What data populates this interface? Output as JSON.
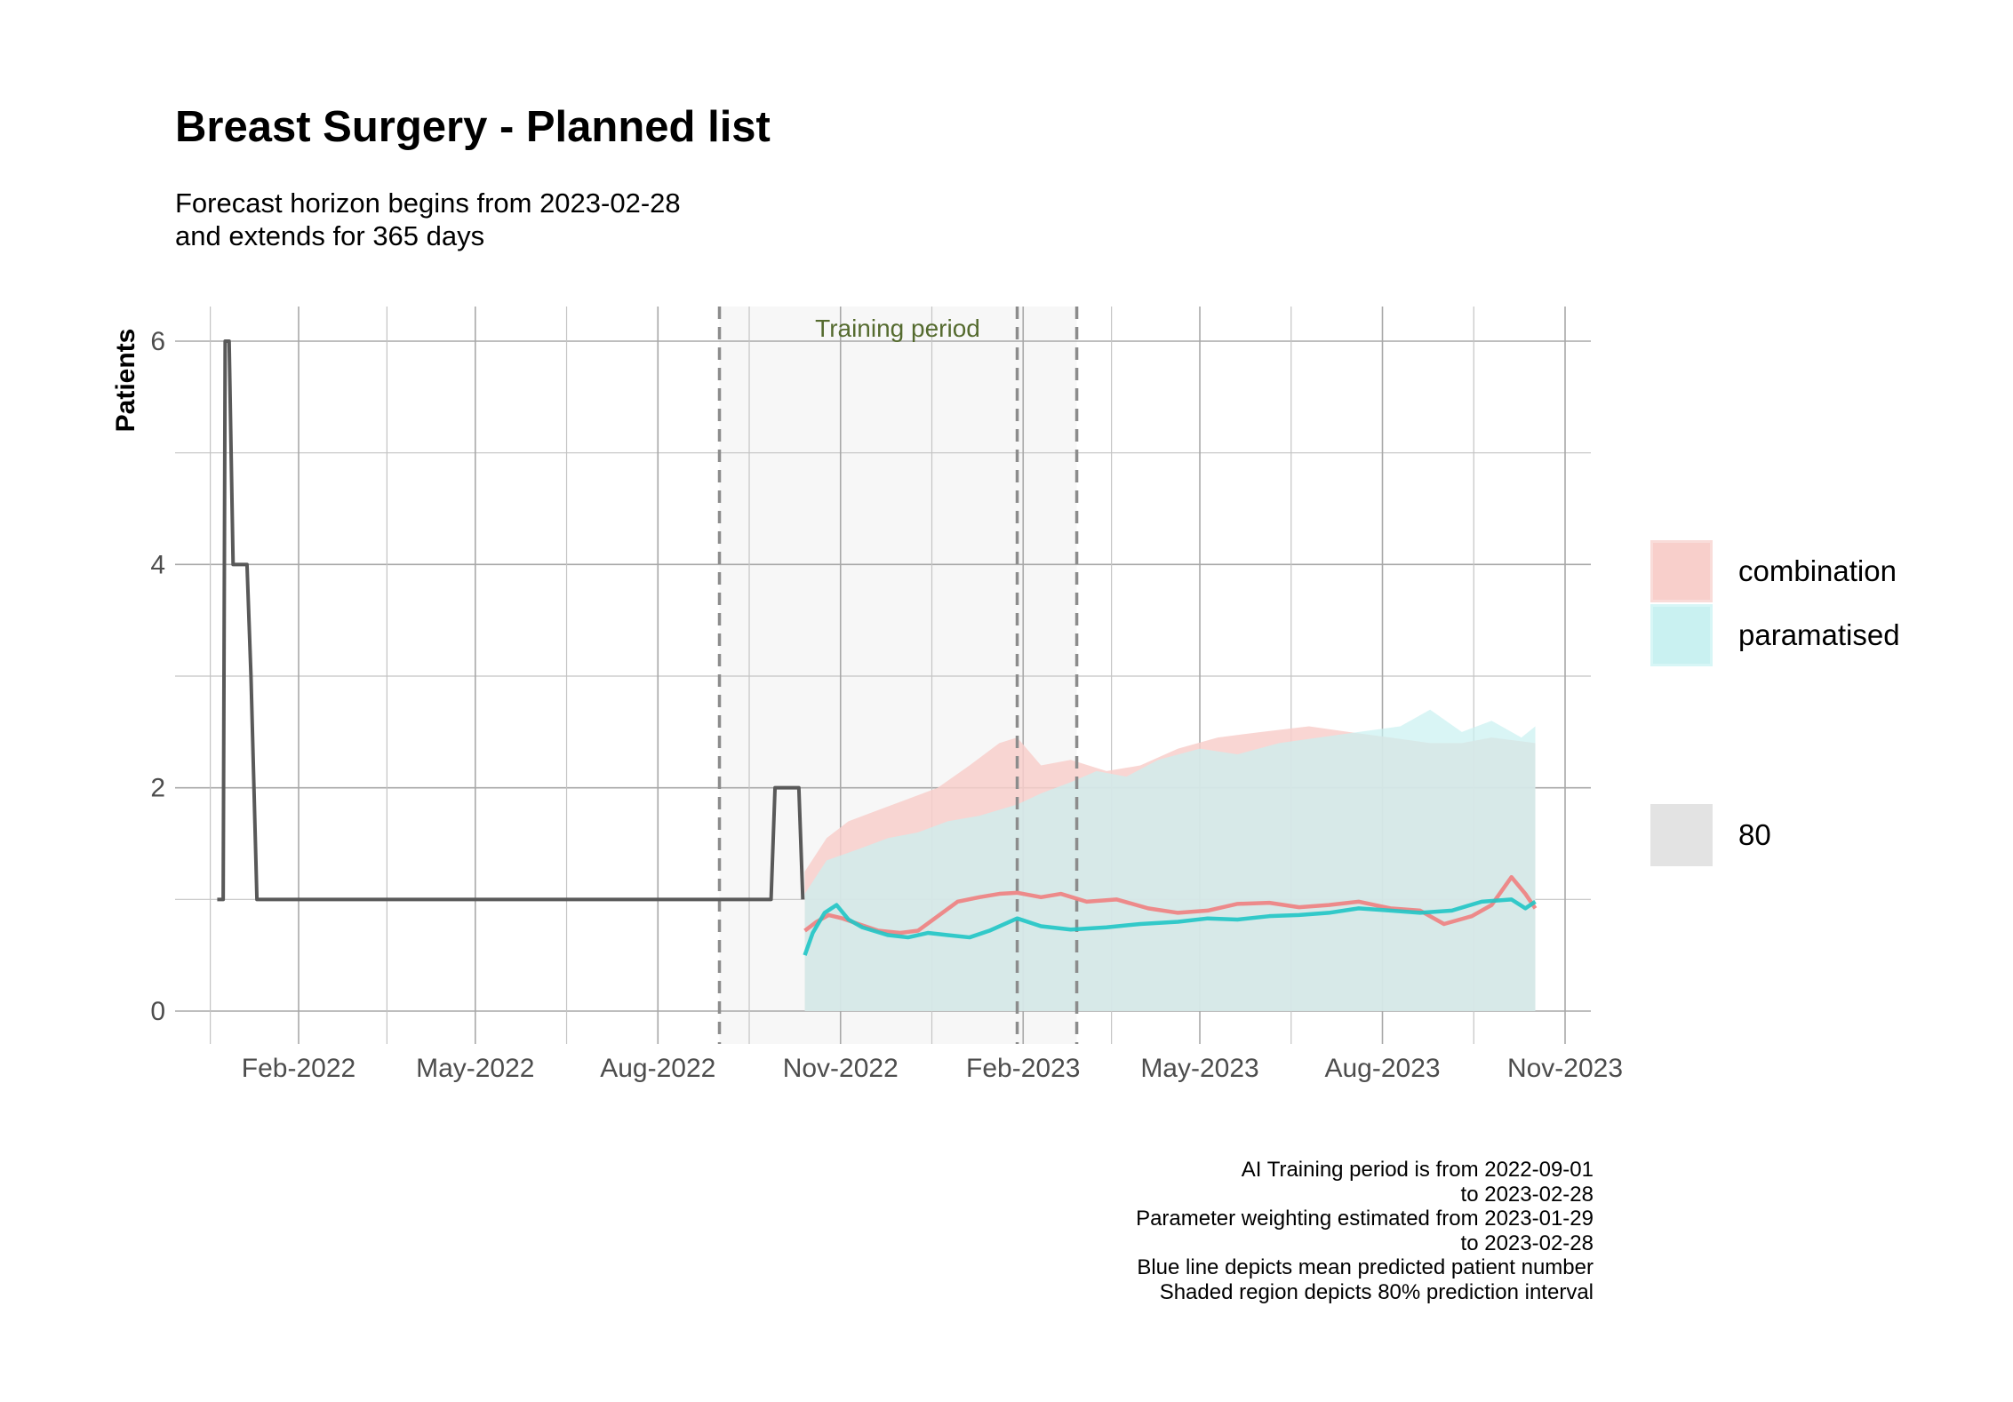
{
  "chart_data": {
    "type": "line",
    "title": "Breast Surgery - Planned list",
    "subtitle": [
      "Forecast horizon begins from 2023-02-28",
      "and extends for 365 days"
    ],
    "ylabel": "Patients",
    "xlabel": "",
    "ylim": [
      0,
      6.2
    ],
    "xlim": [
      "2021-12-08",
      "2023-11-15"
    ],
    "x_ticks": [
      {
        "date": "2022-02-01",
        "label": "Feb-2022"
      },
      {
        "date": "2022-05-01",
        "label": "May-2022"
      },
      {
        "date": "2022-08-01",
        "label": "Aug-2022"
      },
      {
        "date": "2022-11-01",
        "label": "Nov-2022"
      },
      {
        "date": "2023-02-01",
        "label": "Feb-2023"
      },
      {
        "date": "2023-05-01",
        "label": "May-2023"
      },
      {
        "date": "2023-08-01",
        "label": "Aug-2023"
      },
      {
        "date": "2023-11-01",
        "label": "Nov-2023"
      }
    ],
    "y_ticks": [
      0,
      2,
      4,
      6
    ],
    "grid": true,
    "legend_position": "right",
    "annotation": "Training period",
    "shaded_period": [
      "2022-09-01",
      "2023-02-28"
    ],
    "reference_lines": [
      "2022-09-01",
      "2023-01-29",
      "2023-02-28"
    ],
    "observed": {
      "color": "#595959",
      "points": [
        [
          "2021-12-22",
          1
        ],
        [
          "2021-12-25",
          1
        ],
        [
          "2021-12-26",
          6
        ],
        [
          "2021-12-28",
          6
        ],
        [
          "2021-12-30",
          4
        ],
        [
          "2022-01-06",
          4
        ],
        [
          "2022-01-08",
          3
        ],
        [
          "2022-01-11",
          1
        ],
        [
          "2022-08-31",
          1
        ],
        [
          "2022-09-27",
          1
        ],
        [
          "2022-09-29",
          2
        ],
        [
          "2022-10-11",
          2
        ],
        [
          "2022-10-13",
          1
        ]
      ]
    },
    "series": [
      {
        "name": "combination",
        "color": "#f08080",
        "band_color": "#f8cfcb",
        "mean": [
          [
            "2022-10-14",
            0.72
          ],
          [
            "2022-10-20",
            0.8
          ],
          [
            "2022-10-26",
            0.86
          ],
          [
            "2022-11-02",
            0.83
          ],
          [
            "2022-11-10",
            0.78
          ],
          [
            "2022-11-20",
            0.72
          ],
          [
            "2022-12-01",
            0.7
          ],
          [
            "2022-12-10",
            0.72
          ],
          [
            "2022-12-20",
            0.85
          ],
          [
            "2022-12-30",
            0.98
          ],
          [
            "2023-01-10",
            1.02
          ],
          [
            "2023-01-20",
            1.05
          ],
          [
            "2023-01-29",
            1.06
          ],
          [
            "2023-02-10",
            1.02
          ],
          [
            "2023-02-20",
            1.05
          ],
          [
            "2023-03-05",
            0.98
          ],
          [
            "2023-03-20",
            1.0
          ],
          [
            "2023-04-05",
            0.92
          ],
          [
            "2023-04-20",
            0.88
          ],
          [
            "2023-05-05",
            0.9
          ],
          [
            "2023-05-20",
            0.96
          ],
          [
            "2023-06-05",
            0.97
          ],
          [
            "2023-06-20",
            0.93
          ],
          [
            "2023-07-05",
            0.95
          ],
          [
            "2023-07-20",
            0.98
          ],
          [
            "2023-08-05",
            0.92
          ],
          [
            "2023-08-20",
            0.9
          ],
          [
            "2023-09-01",
            0.78
          ],
          [
            "2023-09-15",
            0.85
          ],
          [
            "2023-09-25",
            0.95
          ],
          [
            "2023-10-05",
            1.2
          ],
          [
            "2023-10-12",
            1.05
          ],
          [
            "2023-10-17",
            0.92
          ]
        ],
        "upper": [
          [
            "2022-10-14",
            1.25
          ],
          [
            "2022-10-25",
            1.55
          ],
          [
            "2022-11-05",
            1.7
          ],
          [
            "2022-11-20",
            1.8
          ],
          [
            "2022-12-05",
            1.9
          ],
          [
            "2022-12-20",
            2.0
          ],
          [
            "2023-01-05",
            2.2
          ],
          [
            "2023-01-20",
            2.4
          ],
          [
            "2023-01-29",
            2.45
          ],
          [
            "2023-02-10",
            2.2
          ],
          [
            "2023-02-25",
            2.25
          ],
          [
            "2023-03-15",
            2.15
          ],
          [
            "2023-04-01",
            2.2
          ],
          [
            "2023-04-20",
            2.35
          ],
          [
            "2023-05-10",
            2.45
          ],
          [
            "2023-06-01",
            2.5
          ],
          [
            "2023-06-25",
            2.55
          ],
          [
            "2023-07-15",
            2.5
          ],
          [
            "2023-08-05",
            2.45
          ],
          [
            "2023-08-25",
            2.4
          ],
          [
            "2023-09-10",
            2.4
          ],
          [
            "2023-09-25",
            2.45
          ],
          [
            "2023-10-17",
            2.4
          ]
        ],
        "lower": [
          [
            "2022-10-14",
            0.0
          ],
          [
            "2023-10-17",
            0.0
          ]
        ]
      },
      {
        "name": "paramatised",
        "color": "#20c5c5",
        "band_color": "#c9f1f1",
        "mean": [
          [
            "2022-10-14",
            0.5
          ],
          [
            "2022-10-18",
            0.7
          ],
          [
            "2022-10-24",
            0.88
          ],
          [
            "2022-10-30",
            0.95
          ],
          [
            "2022-11-05",
            0.82
          ],
          [
            "2022-11-12",
            0.75
          ],
          [
            "2022-11-25",
            0.68
          ],
          [
            "2022-12-05",
            0.66
          ],
          [
            "2022-12-15",
            0.7
          ],
          [
            "2022-12-25",
            0.68
          ],
          [
            "2023-01-05",
            0.66
          ],
          [
            "2023-01-15",
            0.72
          ],
          [
            "2023-01-29",
            0.83
          ],
          [
            "2023-02-10",
            0.76
          ],
          [
            "2023-02-25",
            0.73
          ],
          [
            "2023-03-15",
            0.75
          ],
          [
            "2023-04-01",
            0.78
          ],
          [
            "2023-04-20",
            0.8
          ],
          [
            "2023-05-05",
            0.83
          ],
          [
            "2023-05-20",
            0.82
          ],
          [
            "2023-06-05",
            0.85
          ],
          [
            "2023-06-20",
            0.86
          ],
          [
            "2023-07-05",
            0.88
          ],
          [
            "2023-07-20",
            0.92
          ],
          [
            "2023-08-05",
            0.9
          ],
          [
            "2023-08-20",
            0.88
          ],
          [
            "2023-09-05",
            0.9
          ],
          [
            "2023-09-20",
            0.98
          ],
          [
            "2023-10-05",
            1.0
          ],
          [
            "2023-10-12",
            0.92
          ],
          [
            "2023-10-17",
            0.98
          ]
        ],
        "upper": [
          [
            "2022-10-14",
            1.05
          ],
          [
            "2022-10-25",
            1.35
          ],
          [
            "2022-11-10",
            1.45
          ],
          [
            "2022-11-25",
            1.55
          ],
          [
            "2022-12-10",
            1.6
          ],
          [
            "2022-12-25",
            1.7
          ],
          [
            "2023-01-10",
            1.75
          ],
          [
            "2023-01-29",
            1.85
          ],
          [
            "2023-02-10",
            1.95
          ],
          [
            "2023-02-25",
            2.05
          ],
          [
            "2023-03-10",
            2.15
          ],
          [
            "2023-03-25",
            2.1
          ],
          [
            "2023-04-10",
            2.25
          ],
          [
            "2023-05-01",
            2.35
          ],
          [
            "2023-05-20",
            2.3
          ],
          [
            "2023-06-10",
            2.4
          ],
          [
            "2023-06-30",
            2.45
          ],
          [
            "2023-07-20",
            2.5
          ],
          [
            "2023-08-10",
            2.55
          ],
          [
            "2023-08-25",
            2.7
          ],
          [
            "2023-09-10",
            2.5
          ],
          [
            "2023-09-25",
            2.6
          ],
          [
            "2023-10-10",
            2.45
          ],
          [
            "2023-10-17",
            2.55
          ]
        ],
        "lower": [
          [
            "2022-10-14",
            0.0
          ],
          [
            "2023-10-17",
            0.0
          ]
        ]
      }
    ],
    "interval_legend_label": "80",
    "interval_legend_color": "#e3e3e3"
  },
  "caption": [
    "AI Training period is from 2022-09-01",
    "to 2023-02-28",
    "Parameter weighting estimated from 2023-01-29",
    "to 2023-02-28",
    "Blue line depicts mean predicted patient number",
    "Shaded region depicts 80% prediction interval"
  ]
}
